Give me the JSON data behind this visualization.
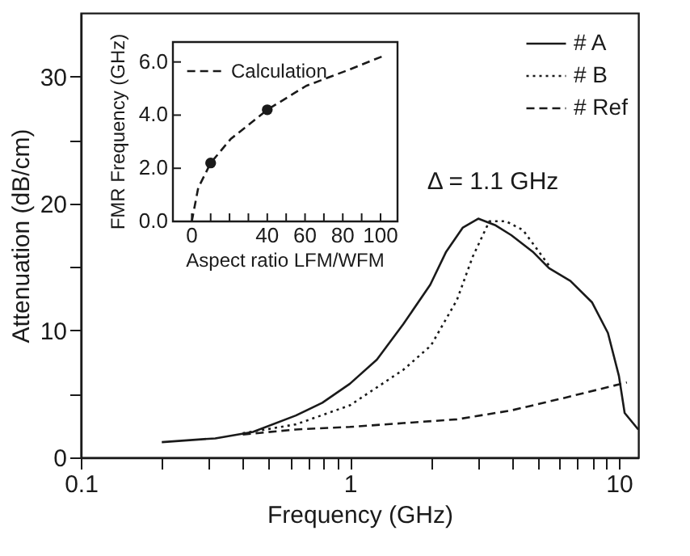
{
  "chart_data": [
    {
      "type": "line",
      "xlabel": "Frequency (GHz)",
      "ylabel": "Attenuation (dB/cm)",
      "log": "x",
      "grid": false,
      "legend": "top right",
      "xlim": [
        0.1,
        11.8
      ],
      "xticks": [
        0.1,
        {
          "value": 0.2,
          "label": null
        },
        {
          "value": 0.3,
          "label": null
        },
        {
          "value": 0.4,
          "label": null
        },
        {
          "value": 0.5,
          "label": null
        },
        {
          "value": 0.6,
          "label": null
        },
        {
          "value": 0.7,
          "label": null
        },
        {
          "value": 0.8,
          "label": null
        },
        {
          "value": 0.9,
          "label": null
        },
        1,
        {
          "value": 2,
          "label": null
        },
        {
          "value": 3,
          "label": null
        },
        {
          "value": 4,
          "label": null
        },
        {
          "value": 5,
          "label": null
        },
        {
          "value": 6,
          "label": null
        },
        {
          "value": 7,
          "label": null
        },
        {
          "value": 8,
          "label": null
        },
        {
          "value": 9,
          "label": null
        },
        10
      ],
      "ylim": [
        0,
        35
      ],
      "yticks": [
        0,
        {
          "value": 5,
          "label": null
        },
        10,
        {
          "value": 15,
          "label": null
        },
        20,
        {
          "value": 25,
          "label": null
        },
        30
      ],
      "annotations": [
        "Δ = 1.1 GHz"
      ],
      "series": [
        {
          "name": "# A",
          "color": "#1a1a1a",
          "line_style": "solid",
          "x": [
            0.2,
            0.316,
            0.436,
            0.63,
            0.79,
            1.0,
            1.26,
            1.58,
            1.99,
            2.28,
            2.63,
            3.0,
            3.46,
            3.98,
            4.78,
            5.5,
            6.6,
            7.95,
            9.1,
            10.0,
            10.5,
            11.8
          ],
          "values": [
            1.2,
            1.5,
            2.0,
            3.3,
            4.3,
            5.8,
            7.7,
            10.5,
            13.6,
            16.2,
            18.1,
            18.8,
            18.3,
            17.5,
            16.2,
            14.9,
            13.9,
            12.2,
            9.8,
            6.4,
            3.5,
            2.2
          ]
        },
        {
          "name": "# B",
          "color": "#1a1a1a",
          "line_style": "dotted",
          "x": [
            0.4,
            0.63,
            1.0,
            1.58,
            2.0,
            2.5,
            2.86,
            3.3,
            3.8,
            4.4,
            5.5
          ],
          "values": [
            1.9,
            2.6,
            4.1,
            6.9,
            8.8,
            12.4,
            15.8,
            18.6,
            18.6,
            17.9,
            15.1
          ]
        },
        {
          "name": "# Ref",
          "color": "#1a1a1a",
          "line_style": "dashed",
          "x": [
            0.4,
            0.63,
            1.0,
            1.58,
            2.5,
            3.98,
            6.3,
            10.7
          ],
          "values": [
            1.8,
            2.2,
            2.4,
            2.7,
            3.0,
            3.7,
            4.7,
            5.9
          ]
        }
      ]
    },
    {
      "type": "line",
      "xlabel": "Aspect ratio LFM/WFM",
      "ylabel": "FMR Frequency (GHz)",
      "grid": false,
      "legend": "top left",
      "xlim": [
        -10,
        109
      ],
      "xticks": [
        0,
        {
          "value": 10,
          "label": null
        },
        {
          "value": 20,
          "label": null
        },
        {
          "value": 30,
          "label": null
        },
        40,
        {
          "value": 50,
          "label": null
        },
        60,
        {
          "value": 70,
          "label": null
        },
        80,
        {
          "value": 90,
          "label": null
        },
        100
      ],
      "ylim": [
        0,
        6.75
      ],
      "yticks": [
        {
          "value": 0,
          "label": "0.0"
        },
        {
          "value": 2,
          "label": "2.0"
        },
        {
          "value": 4,
          "label": "4.0"
        },
        {
          "value": 6,
          "label": "6.0"
        }
      ],
      "series": [
        {
          "name": "Calculation",
          "type": "line",
          "color": "#1a1a1a",
          "line_style": "dashed",
          "x": [
            0,
            3.4,
            10,
            20.6,
            40,
            60.6,
            83,
            100.6
          ],
          "values": [
            0,
            1.26,
            2.2,
            3.1,
            4.2,
            5.1,
            5.7,
            6.2
          ]
        },
        {
          "type": "scatter",
          "marker": "circle",
          "color": "#1a1a1a",
          "x": [
            10,
            40
          ],
          "values": [
            2.2,
            4.2
          ]
        }
      ]
    }
  ]
}
